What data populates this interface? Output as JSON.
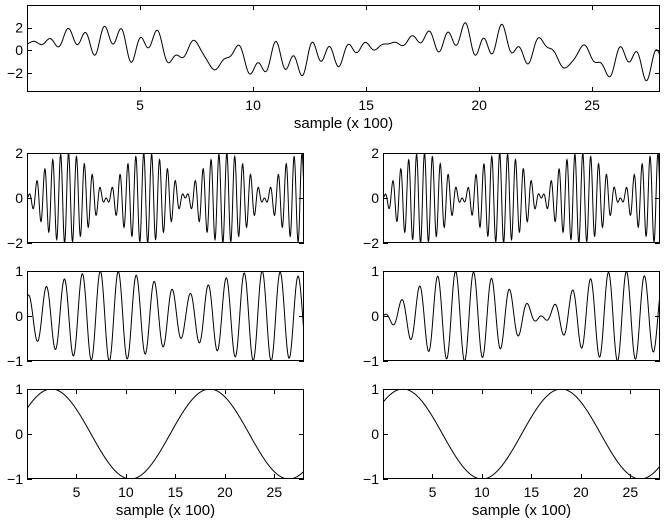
{
  "chart_data": [
    {
      "id": "mixture",
      "type": "line",
      "xlim": [
        0,
        28
      ],
      "ylim": [
        -3.7,
        4
      ],
      "xticks": [
        5,
        10,
        15,
        20,
        25
      ],
      "xtick_labels": [
        "5",
        "10",
        "15",
        "20",
        "25"
      ],
      "yticks": [
        -2,
        0,
        2
      ],
      "ytick_labels": [
        "−2",
        "0",
        "2"
      ],
      "xlabel": "sample (x 100)",
      "components": [
        {
          "type": "am",
          "a": 1.0,
          "f": 1.25,
          "fm": 0.0625,
          "p": 0.0
        },
        {
          "type": "am",
          "a": 1.0,
          "f": 0.55,
          "fm": 0.0312,
          "p": 1.1
        },
        {
          "type": "sin",
          "a": 1.0,
          "f": 0.0625,
          "p": 0.6
        }
      ]
    },
    {
      "id": "source-1-high",
      "type": "line",
      "xlim": [
        0,
        28
      ],
      "ylim": [
        -2,
        2
      ],
      "xticks": [],
      "yticks": [
        -2,
        0,
        2
      ],
      "ytick_labels": [
        "−2",
        "0",
        "2"
      ],
      "xlabel": "",
      "components": [
        {
          "type": "am",
          "a": 2.0,
          "f": 1.25,
          "fm": 0.0625,
          "p": 0.0
        }
      ]
    },
    {
      "id": "source-2-high",
      "type": "line",
      "xlim": [
        0,
        28
      ],
      "ylim": [
        -2,
        2
      ],
      "xticks": [],
      "yticks": [
        -2,
        0,
        2
      ],
      "ytick_labels": [
        "−2",
        "0",
        "2"
      ],
      "xlabel": "",
      "components": [
        {
          "type": "am",
          "a": 2.0,
          "f": 1.25,
          "fm": 0.0625,
          "p": 0.05
        }
      ]
    },
    {
      "id": "source-1-mid",
      "type": "line",
      "xlim": [
        0,
        28
      ],
      "ylim": [
        -1,
        1
      ],
      "xticks": [],
      "yticks": [
        -1,
        0,
        1
      ],
      "ytick_labels": [
        "−1",
        "0",
        "1"
      ],
      "xlabel": "",
      "components": [
        {
          "type": "am2",
          "a": 1.0,
          "b": 0.55,
          "f": 0.55,
          "fm": 0.0312,
          "p": 1.1
        }
      ]
    },
    {
      "id": "source-2-mid",
      "type": "line",
      "xlim": [
        0,
        28
      ],
      "ylim": [
        -1,
        1
      ],
      "xticks": [],
      "yticks": [
        -1,
        0,
        1
      ],
      "ytick_labels": [
        "−1",
        "0",
        "1"
      ],
      "xlabel": "",
      "components": [
        {
          "type": "am",
          "a": 1.0,
          "f": 0.55,
          "fm": 0.0312,
          "p": 1.35
        }
      ]
    },
    {
      "id": "source-1-low",
      "type": "line",
      "xlim": [
        0,
        28
      ],
      "ylim": [
        -1,
        1
      ],
      "xticks": [
        5,
        10,
        15,
        20,
        25
      ],
      "xtick_labels": [
        "5",
        "10",
        "15",
        "20",
        "25"
      ],
      "yticks": [
        -1,
        0,
        1
      ],
      "ytick_labels": [
        "−1",
        "0",
        "1"
      ],
      "xlabel": "sample (x 100)",
      "components": [
        {
          "type": "sin",
          "a": 1.0,
          "f": 0.0625,
          "p": 0.6
        }
      ]
    },
    {
      "id": "source-2-low",
      "type": "line",
      "xlim": [
        0,
        28
      ],
      "ylim": [
        -1,
        1
      ],
      "xticks": [
        5,
        10,
        15,
        20,
        25
      ],
      "xtick_labels": [
        "5",
        "10",
        "15",
        "20",
        "25"
      ],
      "yticks": [
        -1,
        0,
        1
      ],
      "ytick_labels": [
        "−1",
        "0",
        "1"
      ],
      "xlabel": "sample (x 100)",
      "components": [
        {
          "type": "sin",
          "a": 1.0,
          "f": 0.0625,
          "p": 0.78
        }
      ]
    }
  ]
}
